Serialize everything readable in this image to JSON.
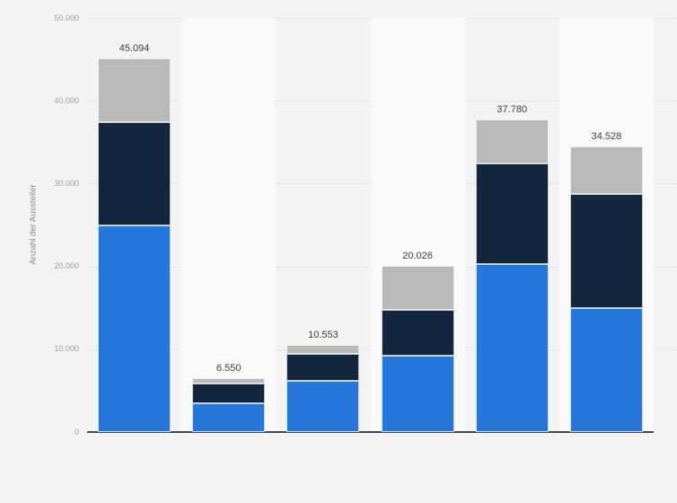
{
  "chart_data": {
    "type": "bar",
    "stacked": true,
    "title": "",
    "xlabel": "",
    "ylabel": "Anzahl der Aussteller",
    "ylim": [
      0,
      50000
    ],
    "grid": "horizontal-dotted",
    "legend": "none",
    "categories": [
      "",
      "",
      "",
      "",
      "",
      ""
    ],
    "series": [
      {
        "name": "blue-bottom-segment",
        "color": "#2776d9",
        "values": [
          25000,
          3450,
          6150,
          9200,
          20300,
          15000
        ]
      },
      {
        "name": "navy-middle-segment",
        "color": "#12263d",
        "values": [
          12400,
          2400,
          3250,
          5550,
          12100,
          13750
        ]
      },
      {
        "name": "gray-top-segment",
        "color": "#b9b9b9",
        "values": [
          7694,
          700,
          1153,
          5276,
          5380,
          5778
        ]
      }
    ],
    "totals": [
      45094,
      6550,
      10553,
      20026,
      37780,
      34528
    ],
    "total_labels": [
      "45.094",
      "6.550",
      "10.553",
      "20.026",
      "37.780",
      "34.528"
    ],
    "yticks": [
      {
        "value": 0,
        "label": "0"
      },
      {
        "value": 10000,
        "label": "10.000"
      },
      {
        "value": 20000,
        "label": "20.000"
      },
      {
        "value": 30000,
        "label": "30.000"
      },
      {
        "value": 40000,
        "label": "40.000"
      },
      {
        "value": 50000,
        "label": "50.000"
      }
    ]
  },
  "colors": {
    "background": "#f3f3f3",
    "band_alt": "#f9f9f9",
    "gridline": "#d6d6d6",
    "axis_line": "#484848",
    "tick_label": "#9e9e9e",
    "value_label": "#404040",
    "axis_title": "#8a8a8a"
  }
}
